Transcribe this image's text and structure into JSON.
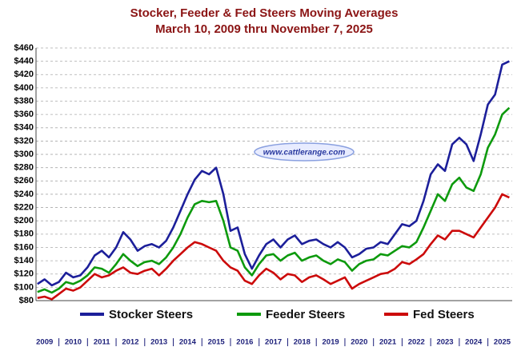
{
  "chart_data": {
    "type": "line",
    "title": "Stocker, Feeder & Fed Steers Moving Averages",
    "subtitle": "March 10, 2009 thru November 7, 2025",
    "watermark": "www.cattlerange.com",
    "x": [
      2009.25,
      2009.5,
      2009.75,
      2010,
      2010.25,
      2010.5,
      2010.75,
      2011,
      2011.25,
      2011.5,
      2011.75,
      2012,
      2012.25,
      2012.5,
      2012.75,
      2013,
      2013.25,
      2013.5,
      2013.75,
      2014,
      2014.25,
      2014.5,
      2014.75,
      2015,
      2015.25,
      2015.5,
      2015.75,
      2016,
      2016.25,
      2016.5,
      2016.75,
      2017,
      2017.25,
      2017.5,
      2017.75,
      2018,
      2018.25,
      2018.5,
      2018.75,
      2019,
      2019.25,
      2019.5,
      2019.75,
      2020,
      2020.25,
      2020.5,
      2020.75,
      2021,
      2021.25,
      2021.5,
      2021.75,
      2022,
      2022.25,
      2022.5,
      2022.75,
      2023,
      2023.25,
      2023.5,
      2023.75,
      2024,
      2024.25,
      2024.5,
      2024.75,
      2025,
      2025.25,
      2025.5,
      2025.75
    ],
    "series": [
      {
        "name": "Stocker Steers",
        "color": "#1c1f9a",
        "values": [
          105,
          112,
          103,
          108,
          122,
          115,
          118,
          130,
          148,
          155,
          145,
          160,
          183,
          172,
          155,
          162,
          165,
          160,
          170,
          190,
          215,
          240,
          262,
          275,
          270,
          280,
          240,
          185,
          190,
          150,
          128,
          148,
          165,
          172,
          160,
          172,
          178,
          165,
          170,
          172,
          165,
          160,
          168,
          160,
          145,
          150,
          158,
          160,
          168,
          165,
          180,
          195,
          192,
          200,
          230,
          270,
          285,
          275,
          315,
          325,
          315,
          290,
          330,
          375,
          390,
          435,
          440
        ]
      },
      {
        "name": "Feeder Steers",
        "color": "#0d9a0d",
        "values": [
          93,
          97,
          92,
          98,
          108,
          105,
          110,
          118,
          130,
          128,
          122,
          135,
          150,
          140,
          132,
          138,
          140,
          135,
          145,
          160,
          180,
          205,
          225,
          230,
          228,
          230,
          200,
          160,
          155,
          130,
          118,
          135,
          148,
          150,
          140,
          148,
          152,
          140,
          145,
          148,
          140,
          135,
          142,
          138,
          125,
          135,
          140,
          142,
          150,
          148,
          155,
          162,
          160,
          168,
          190,
          215,
          240,
          230,
          255,
          265,
          250,
          245,
          270,
          310,
          330,
          360,
          370
        ]
      },
      {
        "name": "Fed Steers",
        "color": "#cc0a0a",
        "values": [
          84,
          86,
          82,
          90,
          98,
          95,
          100,
          110,
          120,
          115,
          118,
          125,
          130,
          122,
          120,
          125,
          128,
          118,
          128,
          140,
          150,
          160,
          168,
          165,
          160,
          155,
          140,
          130,
          125,
          110,
          105,
          118,
          128,
          122,
          112,
          120,
          118,
          108,
          115,
          118,
          112,
          105,
          110,
          115,
          98,
          105,
          110,
          115,
          120,
          122,
          128,
          138,
          135,
          142,
          150,
          165,
          178,
          172,
          185,
          185,
          180,
          175,
          190,
          205,
          220,
          240,
          235
        ]
      }
    ],
    "xlim": [
      2009.2,
      2025.85
    ],
    "xticks": [
      {
        "value": 2009.5,
        "label": "2009"
      },
      {
        "value": 2010.5,
        "label": "2010"
      },
      {
        "value": 2011.5,
        "label": "2011"
      },
      {
        "value": 2012.5,
        "label": "2012"
      },
      {
        "value": 2013.5,
        "label": "2013"
      },
      {
        "value": 2014.5,
        "label": "2014"
      },
      {
        "value": 2015.5,
        "label": "2015"
      },
      {
        "value": 2016.5,
        "label": "2016"
      },
      {
        "value": 2017.5,
        "label": "2017"
      },
      {
        "value": 2018.5,
        "label": "2018"
      },
      {
        "value": 2019.5,
        "label": "2019"
      },
      {
        "value": 2020.5,
        "label": "2020"
      },
      {
        "value": 2021.5,
        "label": "2021"
      },
      {
        "value": 2022.5,
        "label": "2022"
      },
      {
        "value": 2023.5,
        "label": "2023"
      },
      {
        "value": 2024.5,
        "label": "2024"
      },
      {
        "value": 2025.5,
        "label": "2025"
      }
    ],
    "ylim": [
      80,
      460
    ],
    "yticks": [
      {
        "value": 80,
        "label": "$80"
      },
      {
        "value": 100,
        "label": "$100"
      },
      {
        "value": 120,
        "label": "$120"
      },
      {
        "value": 140,
        "label": "$140"
      },
      {
        "value": 160,
        "label": "$160"
      },
      {
        "value": 180,
        "label": "$180"
      },
      {
        "value": 200,
        "label": "$200"
      },
      {
        "value": 220,
        "label": "$220"
      },
      {
        "value": 240,
        "label": "$240"
      },
      {
        "value": 260,
        "label": "$260"
      },
      {
        "value": 280,
        "label": "$280"
      },
      {
        "value": 300,
        "label": "$300"
      },
      {
        "value": 320,
        "label": "$320"
      },
      {
        "value": 340,
        "label": "$340"
      },
      {
        "value": 360,
        "label": "$360"
      },
      {
        "value": 380,
        "label": "$380"
      },
      {
        "value": 400,
        "label": "$400"
      },
      {
        "value": 420,
        "label": "$420"
      },
      {
        "value": 440,
        "label": "$440"
      },
      {
        "value": 460,
        "label": "$460"
      }
    ],
    "grid": true
  }
}
